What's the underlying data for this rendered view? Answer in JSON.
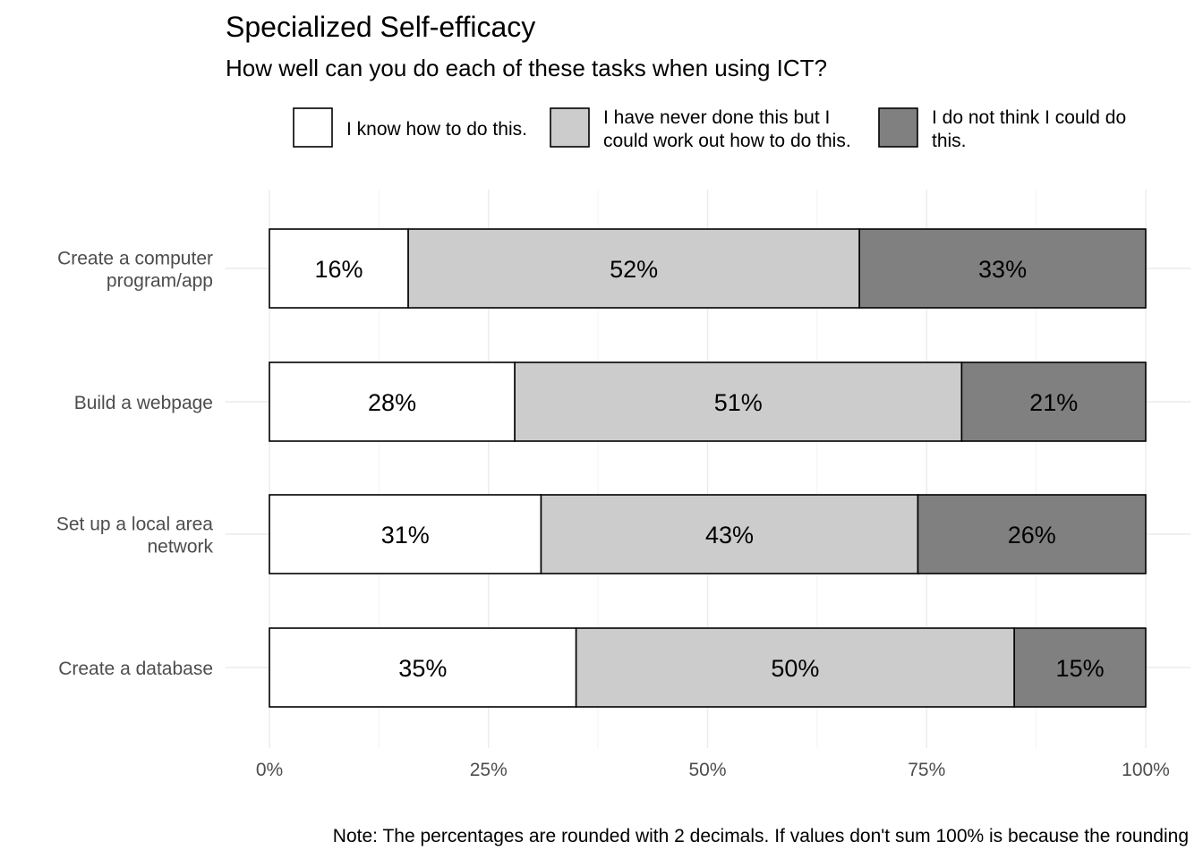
{
  "chart_data": {
    "type": "bar",
    "orientation": "horizontal",
    "stacked": true,
    "title": "Specialized Self-efficacy",
    "subtitle": "How well can you do each of these tasks when using ICT?",
    "caption": "Note: The percentages are rounded with 2 decimals. If values don't sum 100% is because the rounding",
    "categories": [
      [
        "Create a computer",
        "program/app"
      ],
      [
        "Build a webpage"
      ],
      [
        "Set up a local area",
        "network"
      ],
      [
        "Create a database"
      ]
    ],
    "series": [
      {
        "name": [
          "I know how to do this."
        ],
        "color": "#ffffff",
        "values": [
          16,
          28,
          31,
          35
        ],
        "labels": [
          "16%",
          "28%",
          "31%",
          "35%"
        ]
      },
      {
        "name": [
          "I have never done this but I",
          "could work out how to do this."
        ],
        "color": "#cccccc",
        "values": [
          52,
          51,
          43,
          50
        ],
        "labels": [
          "52%",
          "51%",
          "43%",
          "50%"
        ]
      },
      {
        "name": [
          "I do not think I could do",
          "this."
        ],
        "color": "#808080",
        "values": [
          33,
          21,
          26,
          15
        ],
        "labels": [
          "33%",
          "21%",
          "26%",
          "15%"
        ]
      }
    ],
    "xlim": [
      0,
      100
    ],
    "xticks": [
      0,
      25,
      50,
      75,
      100
    ],
    "xtick_labels": [
      "0%",
      "25%",
      "50%",
      "75%",
      "100%"
    ],
    "grid": true,
    "legend_position": "top"
  }
}
